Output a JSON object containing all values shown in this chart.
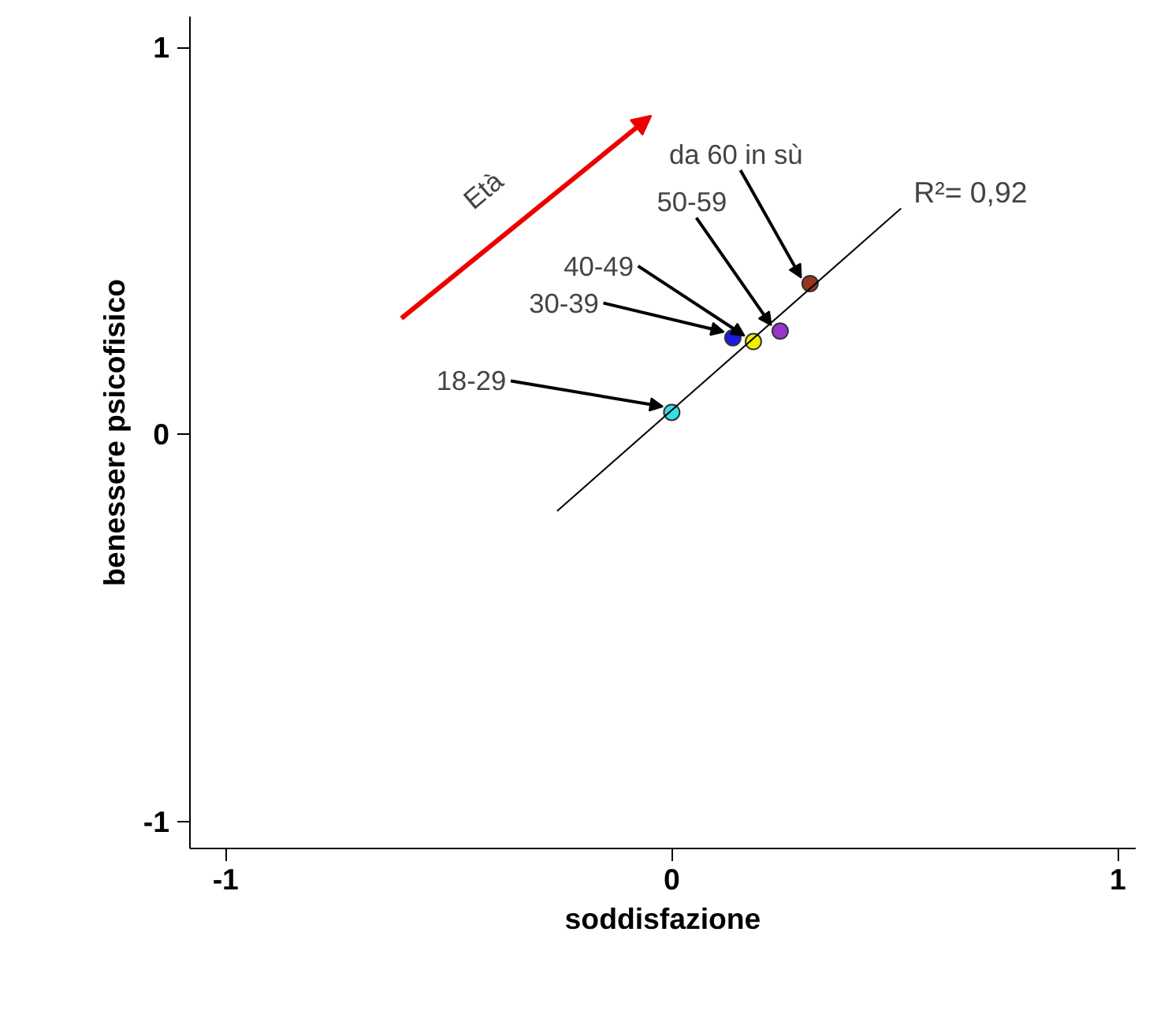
{
  "chart_data": {
    "type": "scatter",
    "xlabel": "soddisfazione",
    "ylabel": "benessere psicofisico",
    "xlim": [
      -1.08,
      1.04
    ],
    "ylim": [
      -1.07,
      1.08
    ],
    "xticks": [
      -1,
      0,
      1
    ],
    "yticks": [
      -1,
      0,
      1
    ],
    "grid": false,
    "marker": "circle",
    "series": [
      {
        "name": "18-29",
        "color": "#33e0e6",
        "x": [
          0.0
        ],
        "values": [
          0.057
        ]
      },
      {
        "name": "30-39",
        "color": "#1a1ae6",
        "x": [
          0.137
        ],
        "values": [
          0.25
        ]
      },
      {
        "name": "40-49",
        "color": "#f0f000",
        "x": [
          0.183
        ],
        "values": [
          0.24
        ]
      },
      {
        "name": "50-59",
        "color": "#9933cc",
        "x": [
          0.243
        ],
        "values": [
          0.267
        ]
      },
      {
        "name": "da 60 in sù",
        "color": "#993322",
        "x": [
          0.31
        ],
        "values": [
          0.39
        ]
      },
      {
        "type": "line",
        "marker": "none",
        "color": "#000000",
        "x": [
          -0.257,
          0.514
        ],
        "values": [
          -0.198,
          0.584
        ]
      }
    ],
    "annotations": [
      {
        "text": "R²= 0,92",
        "x": 0.514,
        "y": 0.584
      },
      {
        "text": "Età"
      }
    ]
  }
}
